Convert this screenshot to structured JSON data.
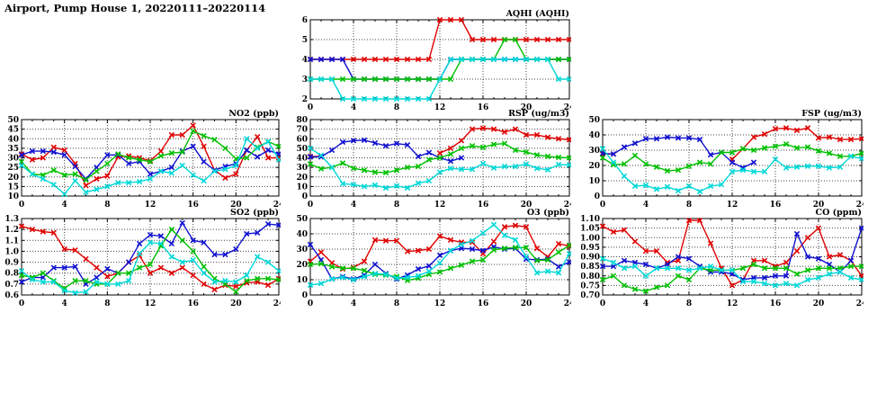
{
  "page_title": "Airport, Pump House 1, 20220111–20220114",
  "colors": {
    "red": "#e00000",
    "blue": "#1010d0",
    "green": "#00c000",
    "cyan": "#00d8d8",
    "frame": "#000000",
    "grid": "#444444",
    "background": "#ffffff"
  },
  "chart_data": [
    {
      "id": "aqhi",
      "type": "line",
      "title": "AQHI (AQHI)",
      "xlabel": "",
      "ylabel": "",
      "xlim": [
        0,
        24
      ],
      "xstep": 4,
      "ylim": [
        2,
        6
      ],
      "ystep": 1,
      "ydecimals": 0,
      "x_hours": [
        0,
        1,
        2,
        3,
        4,
        5,
        6,
        7,
        8,
        9,
        10,
        11,
        12,
        13,
        14,
        15,
        16,
        17,
        18,
        19,
        20,
        21,
        22,
        23,
        24
      ],
      "grid": "dotted",
      "legend_position": "none",
      "series": [
        {
          "name": "red",
          "color": "#e00000",
          "values": [
            4,
            4,
            4,
            4,
            4,
            4,
            4,
            4,
            4,
            4,
            4,
            4,
            6,
            6,
            6,
            5,
            5,
            5,
            5,
            5,
            5,
            5,
            5,
            5,
            5
          ]
        },
        {
          "name": "blue",
          "color": "#1010d0",
          "values": [
            4,
            4,
            4,
            4,
            3,
            3,
            3,
            3,
            3,
            3,
            3,
            3,
            3,
            4,
            4,
            4,
            4,
            4,
            4,
            4,
            4,
            4,
            4,
            4,
            4
          ]
        },
        {
          "name": "green",
          "color": "#00c000",
          "values": [
            3,
            3,
            3,
            3,
            3,
            3,
            3,
            3,
            3,
            3,
            3,
            3,
            3,
            3,
            4,
            4,
            4,
            4,
            5,
            5,
            4,
            4,
            4,
            4,
            4
          ]
        },
        {
          "name": "cyan",
          "color": "#00d8d8",
          "values": [
            3,
            3,
            3,
            2,
            2,
            2,
            2,
            2,
            2,
            2,
            2,
            2,
            3,
            4,
            4,
            4,
            4,
            4,
            4,
            4,
            4,
            4,
            4,
            3,
            3
          ]
        }
      ]
    },
    {
      "id": "no2",
      "type": "line",
      "title": "NO2 (ppb)",
      "xlabel": "",
      "ylabel": "",
      "xlim": [
        0,
        24
      ],
      "xstep": 4,
      "ylim": [
        10,
        50
      ],
      "ystep": 5,
      "ydecimals": 0,
      "x_hours": [
        0,
        1,
        2,
        3,
        4,
        5,
        6,
        7,
        8,
        9,
        10,
        11,
        12,
        13,
        14,
        15,
        16,
        17,
        18,
        19,
        20,
        21,
        22,
        23,
        24
      ],
      "grid": "dotted",
      "legend_position": "none",
      "series": [
        {
          "name": "red",
          "color": "#e00000",
          "values": [
            32,
            29,
            30,
            35.5,
            34,
            27,
            15.5,
            19,
            20.5,
            30.5,
            31,
            30,
            28.5,
            33.5,
            42,
            42,
            47,
            36,
            23.5,
            19.5,
            21.5,
            34,
            41,
            30,
            30
          ]
        },
        {
          "name": "blue",
          "color": "#1010d0",
          "values": [
            31.5,
            33.5,
            33.5,
            33,
            31.5,
            25.5,
            19,
            25,
            31.5,
            31.5,
            27,
            28,
            21.5,
            23,
            25,
            33.5,
            36,
            28,
            23.5,
            25.5,
            27,
            34,
            30.5,
            34,
            32
          ]
        },
        {
          "name": "green",
          "color": "#00c000",
          "values": [
            28,
            21.5,
            21,
            23.5,
            21,
            21.5,
            18.5,
            23,
            27,
            32,
            30,
            29,
            28,
            31,
            32.5,
            33,
            44,
            41.5,
            39.5,
            35,
            29.5,
            30,
            35.5,
            38.5,
            36
          ]
        },
        {
          "name": "cyan",
          "color": "#00d8d8",
          "values": [
            26,
            21.5,
            19,
            16,
            11,
            18,
            12,
            13.5,
            15,
            17,
            17,
            17.5,
            19,
            23,
            22,
            26,
            21,
            18,
            23,
            24,
            26,
            40,
            35,
            38.5,
            29
          ]
        }
      ]
    },
    {
      "id": "rsp",
      "type": "line",
      "title": "RSP (ug/m3)",
      "xlabel": "",
      "ylabel": "",
      "xlim": [
        0,
        24
      ],
      "xstep": 4,
      "ylim": [
        0,
        80
      ],
      "ystep": 10,
      "ydecimals": 0,
      "x_hours": [
        0,
        1,
        2,
        3,
        4,
        5,
        6,
        7,
        8,
        9,
        10,
        11,
        12,
        13,
        14,
        15,
        16,
        17,
        18,
        19,
        20,
        21,
        22,
        23,
        24
      ],
      "grid": "dotted",
      "legend_position": "none",
      "series": [
        {
          "name": "red",
          "color": "#e00000",
          "values": [
            41.5,
            41.5,
            null,
            null,
            null,
            null,
            null,
            null,
            null,
            null,
            null,
            null,
            45,
            50,
            58,
            70,
            71,
            70,
            67,
            70,
            64,
            64,
            61.5,
            60,
            59
          ]
        },
        {
          "name": "blue",
          "color": "#1010d0",
          "values": [
            41,
            41,
            48,
            56.5,
            58,
            58.5,
            55.5,
            52.5,
            55,
            53.5,
            41.5,
            45.5,
            40,
            36.5,
            40,
            null,
            null,
            null,
            null,
            null,
            null,
            null,
            null,
            null,
            null
          ]
        },
        {
          "name": "green",
          "color": "#00c000",
          "values": [
            33.5,
            28.5,
            30,
            34.5,
            29,
            27,
            25,
            24.5,
            27,
            30,
            31,
            38,
            40,
            44,
            50,
            52.5,
            51,
            54,
            55,
            48,
            46,
            43,
            41.5,
            40.5,
            40
          ]
        },
        {
          "name": "cyan",
          "color": "#00d8d8",
          "values": [
            50,
            42.5,
            30,
            13,
            12,
            10,
            11.5,
            8.5,
            10.5,
            8.5,
            13.5,
            16,
            25,
            29,
            28,
            28,
            34,
            29.5,
            31,
            31,
            33.5,
            29,
            27.5,
            33,
            32.5
          ]
        }
      ]
    },
    {
      "id": "fsp",
      "type": "line",
      "title": "FSP (ug/m3)",
      "xlabel": "",
      "ylabel": "",
      "xlim": [
        0,
        24
      ],
      "xstep": 4,
      "ylim": [
        0,
        50
      ],
      "ystep": 10,
      "ydecimals": 0,
      "x_hours": [
        0,
        1,
        2,
        3,
        4,
        5,
        6,
        7,
        8,
        9,
        10,
        11,
        12,
        13,
        14,
        15,
        16,
        17,
        18,
        19,
        20,
        21,
        22,
        23,
        24
      ],
      "grid": "dotted",
      "legend_position": "none",
      "series": [
        {
          "name": "red",
          "color": "#e00000",
          "values": [
            27.5,
            27.5,
            null,
            null,
            null,
            null,
            null,
            null,
            null,
            null,
            null,
            null,
            24,
            31,
            38.5,
            40.5,
            44,
            44.5,
            43,
            44.5,
            38,
            38.5,
            37,
            37,
            37.5
          ]
        },
        {
          "name": "blue",
          "color": "#1010d0",
          "values": [
            28,
            27.5,
            32,
            34.5,
            37.5,
            37.5,
            38.5,
            38,
            38,
            37,
            27,
            28.5,
            22,
            18.5,
            22,
            null,
            null,
            null,
            null,
            null,
            null,
            null,
            null,
            null,
            null
          ]
        },
        {
          "name": "green",
          "color": "#00c000",
          "values": [
            25,
            20.5,
            21,
            26.5,
            21,
            19,
            16.5,
            17,
            19.5,
            22,
            21,
            28.5,
            28.5,
            31,
            30,
            31.5,
            32.5,
            34,
            31.5,
            32,
            29.5,
            28,
            26,
            26,
            28
          ]
        },
        {
          "name": "cyan",
          "color": "#00d8d8",
          "values": [
            31,
            22,
            13,
            6.5,
            7,
            4.5,
            6,
            3.5,
            6.5,
            3,
            6.5,
            7.5,
            16,
            17,
            16,
            16,
            24,
            18.5,
            19,
            19.5,
            19.5,
            18.5,
            19,
            26,
            24.5
          ]
        }
      ]
    },
    {
      "id": "so2",
      "type": "line",
      "title": "SO2 (ppb)",
      "xlabel": "",
      "ylabel": "",
      "xlim": [
        0,
        24
      ],
      "xstep": 4,
      "ylim": [
        0.6,
        1.3
      ],
      "ystep": 0.1,
      "ydecimals": 1,
      "x_hours": [
        0,
        1,
        2,
        3,
        4,
        5,
        6,
        7,
        8,
        9,
        10,
        11,
        12,
        13,
        14,
        15,
        16,
        17,
        18,
        19,
        20,
        21,
        22,
        23,
        24
      ],
      "grid": "dotted",
      "legend_position": "none",
      "series": [
        {
          "name": "red",
          "color": "#e00000",
          "values": [
            1.23,
            1.2,
            1.18,
            1.17,
            1.02,
            1.01,
            0.93,
            0.85,
            0.77,
            0.8,
            0.9,
            0.96,
            0.8,
            0.85,
            0.8,
            0.85,
            0.78,
            0.7,
            0.65,
            0.69,
            0.68,
            0.71,
            0.72,
            0.69,
            0.75
          ]
        },
        {
          "name": "blue",
          "color": "#1010d0",
          "values": [
            0.72,
            0.76,
            0.76,
            0.85,
            0.85,
            0.86,
            0.7,
            0.76,
            0.84,
            0.8,
            0.9,
            1.07,
            1.15,
            1.14,
            1.07,
            1.26,
            1.1,
            1.08,
            0.97,
            0.97,
            1.02,
            1.16,
            1.17,
            1.25,
            1.24
          ]
        },
        {
          "name": "green",
          "color": "#00c000",
          "values": [
            0.78,
            0.76,
            0.8,
            0.73,
            0.66,
            0.73,
            0.73,
            0.7,
            0.7,
            0.8,
            0.8,
            0.85,
            0.88,
            1.05,
            1.2,
            1.1,
            1.0,
            0.86,
            0.75,
            0.7,
            0.63,
            0.73,
            0.75,
            0.75,
            0.74
          ]
        },
        {
          "name": "cyan",
          "color": "#00d8d8",
          "values": [
            0.82,
            0.74,
            0.72,
            0.72,
            0.64,
            0.62,
            0.63,
            0.72,
            0.7,
            0.7,
            0.73,
            0.98,
            1.08,
            1.07,
            0.95,
            0.9,
            0.92,
            0.8,
            0.72,
            0.73,
            0.72,
            0.78,
            0.95,
            0.9,
            0.82
          ]
        }
      ]
    },
    {
      "id": "o3",
      "type": "line",
      "title": "O3 (ppb)",
      "xlabel": "",
      "ylabel": "",
      "xlim": [
        0,
        24
      ],
      "xstep": 4,
      "ylim": [
        0,
        50
      ],
      "ystep": 10,
      "ydecimals": 0,
      "x_hours": [
        0,
        1,
        2,
        3,
        4,
        5,
        6,
        7,
        8,
        9,
        10,
        11,
        12,
        13,
        14,
        15,
        16,
        17,
        18,
        19,
        20,
        21,
        22,
        23,
        24
      ],
      "grid": "dotted",
      "legend_position": "none",
      "series": [
        {
          "name": "red",
          "color": "#e00000",
          "values": [
            22,
            28,
            21,
            17,
            18,
            22,
            36,
            35.5,
            35.5,
            28.5,
            29,
            30,
            38.5,
            36,
            34.5,
            34.5,
            27,
            35,
            44.5,
            45.5,
            44.5,
            30.5,
            25,
            33.5,
            32
          ]
        },
        {
          "name": "blue",
          "color": "#1010d0",
          "values": [
            33,
            23,
            10.5,
            12,
            10.5,
            13,
            20,
            14,
            10.5,
            13,
            17,
            19,
            26,
            29,
            30.5,
            30,
            29,
            31.5,
            30,
            30.5,
            23.5,
            23,
            23.5,
            18.5,
            21.5
          ]
        },
        {
          "name": "green",
          "color": "#00c000",
          "values": [
            20,
            20.5,
            18.5,
            17.5,
            17.5,
            16,
            13.5,
            13,
            12,
            9.5,
            11,
            13.5,
            15,
            17.5,
            19.5,
            22,
            23,
            29.5,
            30.5,
            31,
            31,
            22.5,
            23,
            28,
            32.5
          ]
        },
        {
          "name": "cyan",
          "color": "#00d8d8",
          "values": [
            6.5,
            7.5,
            10.5,
            11.5,
            10,
            12,
            14,
            13.5,
            11,
            11.5,
            12.5,
            15.5,
            21,
            29,
            33,
            35.5,
            40.5,
            46,
            39,
            36,
            25,
            14.5,
            15.5,
            14.5,
            27
          ]
        }
      ]
    },
    {
      "id": "co",
      "type": "line",
      "title": "CO (ppm)",
      "xlabel": "",
      "ylabel": "",
      "xlim": [
        0,
        24
      ],
      "xstep": 4,
      "ylim": [
        0.7,
        1.1
      ],
      "ystep": 0.05,
      "ydecimals": 2,
      "x_hours": [
        0,
        1,
        2,
        3,
        4,
        5,
        6,
        7,
        8,
        9,
        10,
        11,
        12,
        13,
        14,
        15,
        16,
        17,
        18,
        19,
        20,
        21,
        22,
        23,
        24
      ],
      "grid": "dotted",
      "legend_position": "none",
      "series": [
        {
          "name": "red",
          "color": "#e00000",
          "values": [
            1.06,
            1.03,
            1.04,
            0.98,
            0.93,
            0.93,
            0.87,
            0.88,
            1.09,
            1.09,
            0.97,
            0.84,
            0.75,
            0.78,
            0.88,
            0.88,
            0.85,
            0.87,
            0.93,
            1.0,
            1.05,
            0.9,
            0.91,
            0.88,
            0.8
          ]
        },
        {
          "name": "blue",
          "color": "#1010d0",
          "values": [
            0.85,
            0.85,
            0.88,
            0.87,
            0.86,
            0.84,
            0.86,
            0.9,
            0.89,
            0.85,
            0.82,
            0.82,
            0.81,
            0.78,
            0.79,
            0.79,
            0.8,
            0.8,
            1.02,
            0.9,
            0.89,
            0.86,
            0.82,
            0.88,
            1.05
          ]
        },
        {
          "name": "green",
          "color": "#00c000",
          "values": [
            0.78,
            0.8,
            0.75,
            0.73,
            0.72,
            0.74,
            0.75,
            0.8,
            0.78,
            0.84,
            0.83,
            0.83,
            0.83,
            0.84,
            0.86,
            0.84,
            0.84,
            0.84,
            0.81,
            0.83,
            0.84,
            0.84,
            0.84,
            0.85,
            0.85
          ]
        },
        {
          "name": "cyan",
          "color": "#00d8d8",
          "values": [
            0.89,
            0.87,
            0.84,
            0.85,
            0.8,
            0.84,
            0.84,
            0.84,
            0.83,
            0.84,
            0.85,
            0.83,
            0.83,
            0.77,
            0.77,
            0.76,
            0.75,
            0.76,
            0.75,
            0.78,
            0.79,
            0.81,
            0.82,
            0.79,
            0.78
          ]
        }
      ]
    }
  ]
}
